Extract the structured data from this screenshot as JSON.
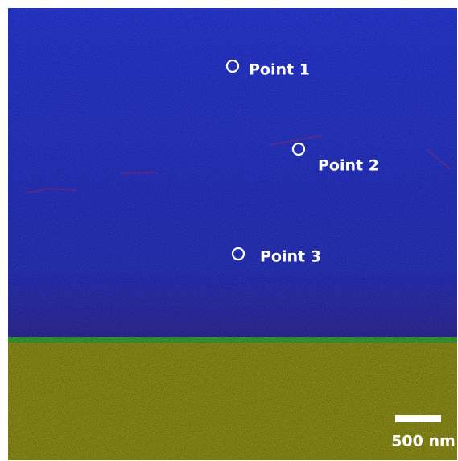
{
  "points": [
    {
      "label": "Point 1"
    },
    {
      "label": "Point 2"
    },
    {
      "label": "Point 3"
    }
  ],
  "scale_bar": {
    "label": "500 nm"
  }
}
